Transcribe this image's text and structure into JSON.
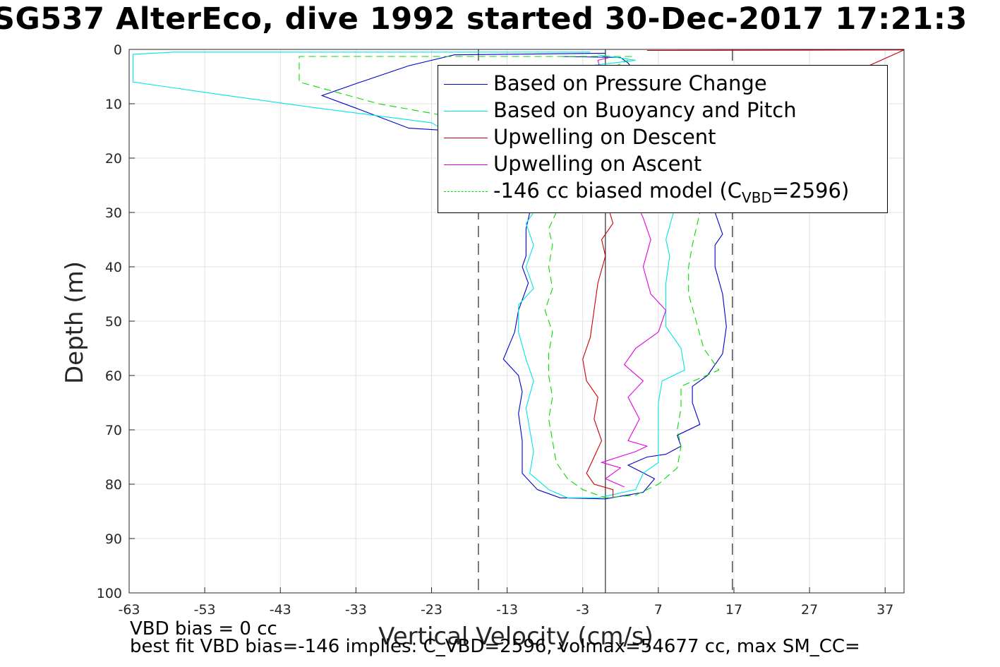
{
  "title": "SG537 AlterEco, dive 1992 started 30-Dec-2017 17:21:3",
  "notes": {
    "vbd_bias": "VBD bias = 0 cc",
    "best_fit": "best fit VBD bias=-146 implies: C_VBD=2596, volmax=54677 cc, max SM_CC="
  },
  "legend": {
    "items": [
      {
        "label": "Based on Pressure Change",
        "color": "#0000cc",
        "dash": false
      },
      {
        "label": "Based on Buoyancy and Pitch",
        "color": "#00e5e5",
        "dash": false
      },
      {
        "label": "Upwelling on Descent",
        "color": "#cc0000",
        "dash": false
      },
      {
        "label": "Upwelling on Ascent",
        "color": "#e000e0",
        "dash": false
      },
      {
        "label_prefix": "-146 cc biased model (C",
        "label_sub": "VBD",
        "label_suffix": "=2596)",
        "color": "#00dd00",
        "dash": true
      }
    ]
  },
  "chart_data": {
    "type": "line",
    "title": "SG537 AlterEco, dive 1992 started 30-Dec-2017 17:21:3",
    "xlabel": "Vertical Velocity (cm/s)",
    "ylabel": "Depth (m)",
    "xlim": [
      -63,
      39.5
    ],
    "ylim": [
      0,
      100
    ],
    "y_reversed": true,
    "xticks": [
      "-63",
      "-53",
      "-43",
      "-33",
      "-23",
      "-13",
      "-3",
      "7",
      "17",
      "27",
      "37"
    ],
    "yticks": [
      "0",
      "10",
      "20",
      "30",
      "40",
      "50",
      "60",
      "70",
      "80",
      "90",
      "100"
    ],
    "grid": true,
    "legend_position": "top-right",
    "reference_lines": {
      "solid_x": 0,
      "dashed_x": [
        -16.8,
        16.8
      ]
    },
    "series": [
      {
        "name": "Based on Pressure Change",
        "color": "#0000cc",
        "dash": false,
        "points": [
          [
            0,
            0.7
          ],
          [
            -20,
            1
          ],
          [
            -26,
            3
          ],
          [
            -33,
            6.3
          ],
          [
            -37.5,
            8.5
          ],
          [
            -33,
            10.8
          ],
          [
            -26,
            14.5
          ],
          [
            -20,
            15
          ],
          [
            -14,
            22
          ],
          [
            -12,
            28
          ],
          [
            -10,
            30
          ],
          [
            -10.5,
            33
          ],
          [
            -10.5,
            38
          ],
          [
            -11,
            40
          ],
          [
            -10.2,
            43
          ],
          [
            -11.5,
            48
          ],
          [
            -12,
            52
          ],
          [
            -13.5,
            57
          ],
          [
            -11.5,
            60
          ],
          [
            -11,
            63
          ],
          [
            -11.5,
            67
          ],
          [
            -11,
            72
          ],
          [
            -11,
            76
          ],
          [
            -11,
            78
          ],
          [
            -9,
            81
          ],
          [
            -6,
            82.5
          ],
          [
            0,
            82.7
          ],
          [
            5,
            81.5
          ],
          [
            6.5,
            79
          ],
          [
            3,
            76.5
          ],
          [
            5.5,
            75
          ],
          [
            8,
            74.5
          ],
          [
            10,
            73
          ],
          [
            9.5,
            71
          ],
          [
            12.5,
            69
          ],
          [
            11.5,
            65
          ],
          [
            11.5,
            62
          ],
          [
            13.5,
            60
          ],
          [
            15.5,
            56
          ],
          [
            16,
            51
          ],
          [
            15.5,
            45
          ],
          [
            14.5,
            40
          ],
          [
            14.5,
            36
          ],
          [
            15.5,
            34
          ],
          [
            14.5,
            30
          ],
          [
            15,
            26
          ],
          [
            3,
            2.5
          ],
          [
            2,
            1.5
          ],
          [
            -6,
            1.3
          ]
        ]
      },
      {
        "name": "Based on Buoyancy and Pitch",
        "color": "#00e5e5",
        "dash": false,
        "points": [
          [
            -2,
            0.5
          ],
          [
            -57,
            0.5
          ],
          [
            -62.5,
            0.9
          ],
          [
            -62.5,
            6
          ],
          [
            -50,
            8.5
          ],
          [
            -38,
            10.8
          ],
          [
            -23,
            13.5
          ],
          [
            -15,
            20
          ],
          [
            -11,
            28
          ],
          [
            -9.5,
            30
          ],
          [
            -10.5,
            32
          ],
          [
            -9.5,
            36
          ],
          [
            -10.5,
            40
          ],
          [
            -9.5,
            44
          ],
          [
            -11.5,
            47
          ],
          [
            -11.5,
            52
          ],
          [
            -10.5,
            57
          ],
          [
            -9.5,
            61
          ],
          [
            -10.5,
            66
          ],
          [
            -10,
            70
          ],
          [
            -9.5,
            74
          ],
          [
            -10,
            78
          ],
          [
            -7.5,
            81
          ],
          [
            -5,
            82.5
          ],
          [
            -1,
            82.5
          ],
          [
            4,
            81
          ],
          [
            5,
            78
          ],
          [
            7,
            76
          ],
          [
            7,
            70
          ],
          [
            7,
            65
          ],
          [
            7.5,
            61
          ],
          [
            10.5,
            59
          ],
          [
            10,
            55
          ],
          [
            8,
            51
          ],
          [
            8,
            47
          ],
          [
            8,
            43
          ],
          [
            8.5,
            38
          ],
          [
            8,
            35
          ],
          [
            9,
            30
          ],
          [
            -2,
            3
          ],
          [
            4,
            2
          ],
          [
            -1,
            1
          ]
        ]
      },
      {
        "name": "Upwelling on Descent",
        "color": "#cc0000",
        "dash": false,
        "points": [
          [
            5.5,
            0.2
          ],
          [
            39.5,
            0.1
          ],
          [
            -0.5,
            25
          ],
          [
            1,
            32
          ],
          [
            -0.5,
            35
          ],
          [
            0,
            38
          ],
          [
            -1,
            43
          ],
          [
            -1.5,
            48
          ],
          [
            -2,
            53
          ],
          [
            -3,
            57
          ],
          [
            -2.5,
            61
          ],
          [
            -1,
            64
          ],
          [
            -1.5,
            68
          ],
          [
            -0.5,
            72
          ],
          [
            -1.5,
            75
          ],
          [
            -2.5,
            78
          ],
          [
            -1.5,
            80
          ],
          [
            1,
            81
          ],
          [
            1,
            82.5
          ]
        ]
      },
      {
        "name": "Upwelling on Ascent",
        "color": "#e000e0",
        "dash": false,
        "points": [
          [
            2.5,
            80.5
          ],
          [
            0,
            79
          ],
          [
            2,
            77
          ],
          [
            -0.5,
            76
          ],
          [
            4,
            74
          ],
          [
            5.5,
            73
          ],
          [
            3,
            72
          ],
          [
            4.5,
            68
          ],
          [
            3,
            64
          ],
          [
            5,
            61
          ],
          [
            2.5,
            58
          ],
          [
            4,
            55
          ],
          [
            7,
            52
          ],
          [
            8,
            48
          ],
          [
            6,
            45
          ],
          [
            5,
            40
          ],
          [
            6,
            35
          ],
          [
            5,
            31
          ],
          [
            4,
            28
          ],
          [
            -1,
            2
          ],
          [
            0.5,
            1.5
          ]
        ]
      },
      {
        "name": "-146 cc biased model (CVBD=2596)",
        "color": "#00dd00",
        "dash": true,
        "points": [
          [
            3.5,
            1.3
          ],
          [
            -40.5,
            1.3
          ],
          [
            -40.5,
            6
          ],
          [
            -30,
            10
          ],
          [
            -22,
            12
          ],
          [
            -16,
            17
          ],
          [
            -10,
            26
          ],
          [
            -6.5,
            30
          ],
          [
            -7.5,
            33
          ],
          [
            -7,
            36
          ],
          [
            -7.5,
            40
          ],
          [
            -7,
            44
          ],
          [
            -8,
            48
          ],
          [
            -7,
            52
          ],
          [
            -7.5,
            56
          ],
          [
            -7.5,
            60
          ],
          [
            -7,
            64
          ],
          [
            -7.5,
            68
          ],
          [
            -7,
            72
          ],
          [
            -6.5,
            76
          ],
          [
            -5,
            79
          ],
          [
            -3,
            81
          ],
          [
            0,
            82.5
          ],
          [
            4,
            82
          ],
          [
            7,
            80
          ],
          [
            9.5,
            77
          ],
          [
            10,
            73
          ],
          [
            9.5,
            70
          ],
          [
            10,
            66
          ],
          [
            10,
            62
          ],
          [
            15,
            59
          ],
          [
            13,
            55
          ],
          [
            12,
            50
          ],
          [
            11,
            45
          ],
          [
            11,
            40
          ],
          [
            11.5,
            36
          ],
          [
            12,
            33
          ],
          [
            12.5,
            30
          ],
          [
            0,
            4
          ],
          [
            3,
            2
          ]
        ]
      }
    ]
  }
}
